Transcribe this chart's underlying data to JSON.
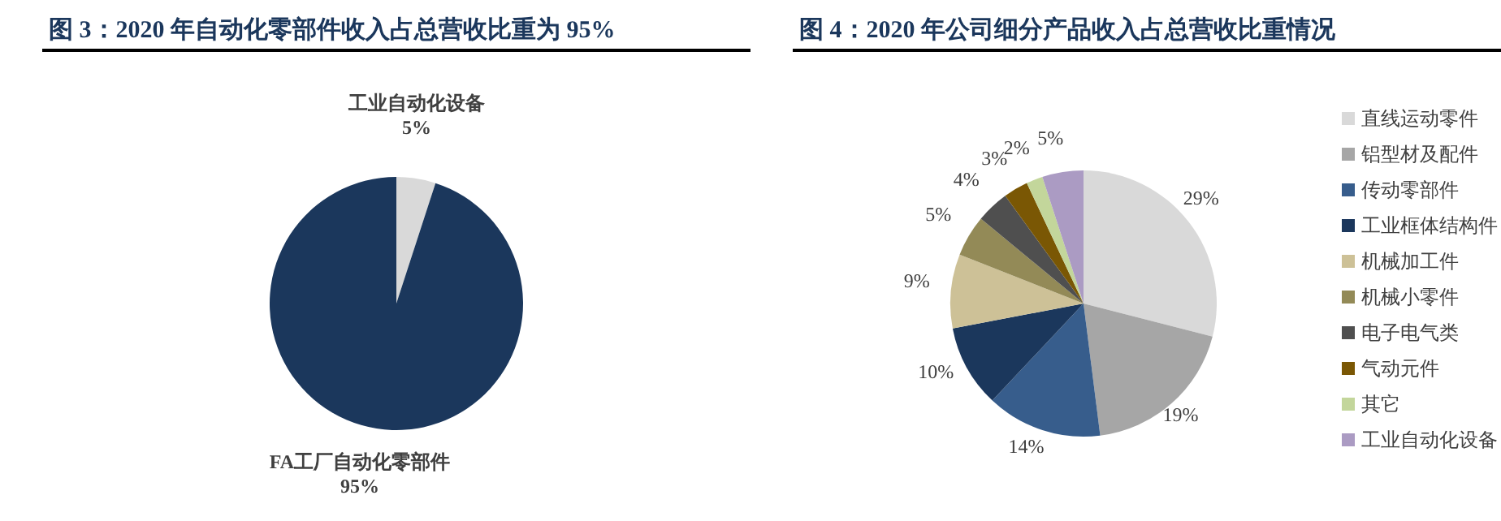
{
  "chart_data": [
    {
      "type": "pie",
      "title": "图 3：2020 年自动化零部件收入占总营收比重为 95%",
      "categories": [
        "工业自动化设备",
        "FA工厂自动化零部件"
      ],
      "values": [
        5,
        95
      ],
      "colors": [
        "#d9d9d9",
        "#1b375c"
      ],
      "value_labels": [
        "5%",
        "95%"
      ],
      "legend": false
    },
    {
      "type": "pie",
      "title": "图 4：2020 年公司细分产品收入占总营收比重情况",
      "categories": [
        "直线运动零件",
        "铝型材及配件",
        "传动零部件",
        "工业框体结构件",
        "机械加工件",
        "机械小零件",
        "电子电气类",
        "气动元件",
        "其它",
        "工业自动化设备"
      ],
      "values": [
        29,
        19,
        14,
        10,
        9,
        5,
        4,
        3,
        2,
        5
      ],
      "colors": [
        "#d9d9d9",
        "#a6a6a6",
        "#375d8c",
        "#1b375c",
        "#cdc197",
        "#938a57",
        "#4f4f4f",
        "#7a5704",
        "#c3d69b",
        "#ab9bc3"
      ],
      "value_labels": [
        "29%",
        "19%",
        "14%",
        "10%",
        "9%",
        "5%",
        "4%",
        "3%",
        "2%",
        "5%"
      ],
      "legend": "right"
    }
  ]
}
